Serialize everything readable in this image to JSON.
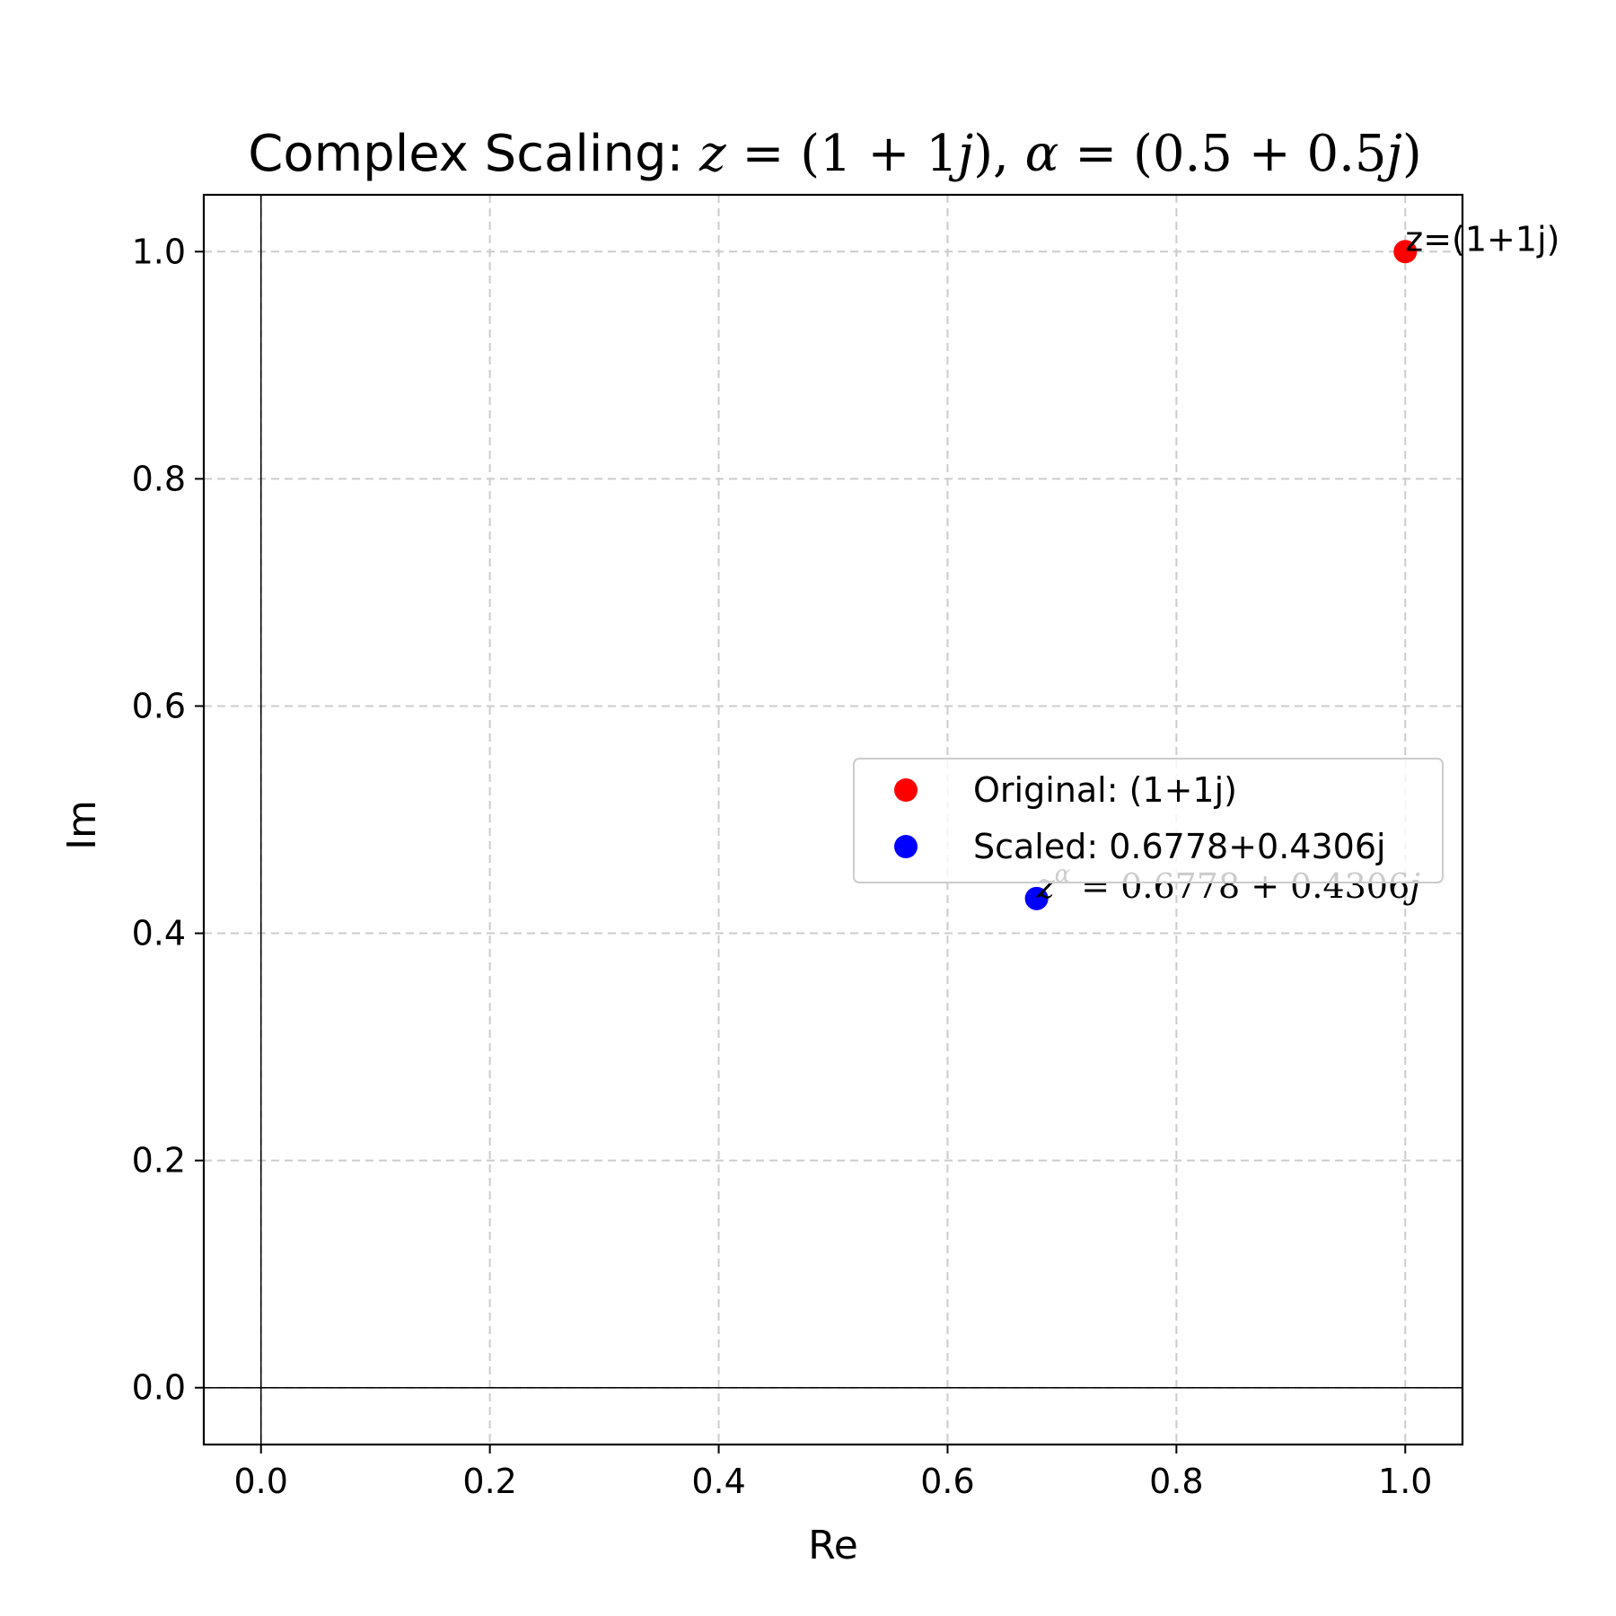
{
  "chart_data": {
    "type": "scatter",
    "title": {
      "prefix": "Complex Scaling: ",
      "z_sym": "z",
      "eq1": " = (1 + 1",
      "j1": "j",
      "mid": "), ",
      "alpha_sym": "α",
      "eq2": " = (0.5 + 0.5",
      "j2": "j",
      "end": ")"
    },
    "xlabel": "Re",
    "ylabel": "Im",
    "xlim": [
      -0.05,
      1.05
    ],
    "ylim": [
      -0.05,
      1.05
    ],
    "xticks": [
      0.0,
      0.2,
      0.4,
      0.6,
      0.8,
      1.0
    ],
    "yticks": [
      0.0,
      0.2,
      0.4,
      0.6,
      0.8,
      1.0
    ],
    "xtick_labels": [
      "0.0",
      "0.2",
      "0.4",
      "0.6",
      "0.8",
      "1.0"
    ],
    "ytick_labels": [
      "0.0",
      "0.2",
      "0.4",
      "0.6",
      "0.8",
      "1.0"
    ],
    "grid": true,
    "legend_position": "center-right",
    "series": [
      {
        "name": "Original: (1+1j)",
        "x": [
          1.0
        ],
        "y": [
          1.0
        ],
        "color": "#ff0000"
      },
      {
        "name": "Scaled: 0.6778+0.4306j",
        "x": [
          0.6778
        ],
        "y": [
          0.4306
        ],
        "color": "#0000ff"
      }
    ],
    "annotations": {
      "original": "z=(1+1j)",
      "scaled_base": "z",
      "scaled_sup": "α",
      "scaled_rest": " = 0.6778 + 0.4306",
      "scaled_j": "j"
    }
  }
}
